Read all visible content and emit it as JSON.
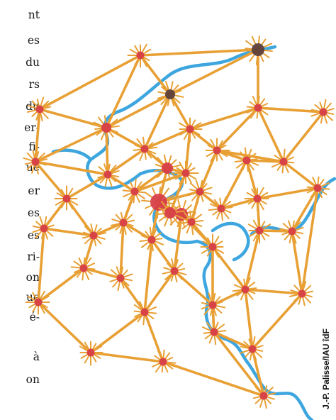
{
  "text_fragments": [
    "nt",
    "es",
    "du",
    "rs",
    "du",
    "er-",
    "fi-",
    "ue",
    "er",
    "es",
    "es",
    "ri-",
    "on",
    "ue",
    "é-",
    "à",
    "on"
  ],
  "credit": "J.-P. Palisse/IAU îdF",
  "colors": {
    "link": "#e8a035",
    "node": "#d63a48",
    "river": "#3ea6df",
    "dark_node": "#553a3a",
    "text": "#1a1a1a"
  },
  "icons": {
    "network": "network-illustration",
    "river": "river-path",
    "node": "star-node"
  }
}
